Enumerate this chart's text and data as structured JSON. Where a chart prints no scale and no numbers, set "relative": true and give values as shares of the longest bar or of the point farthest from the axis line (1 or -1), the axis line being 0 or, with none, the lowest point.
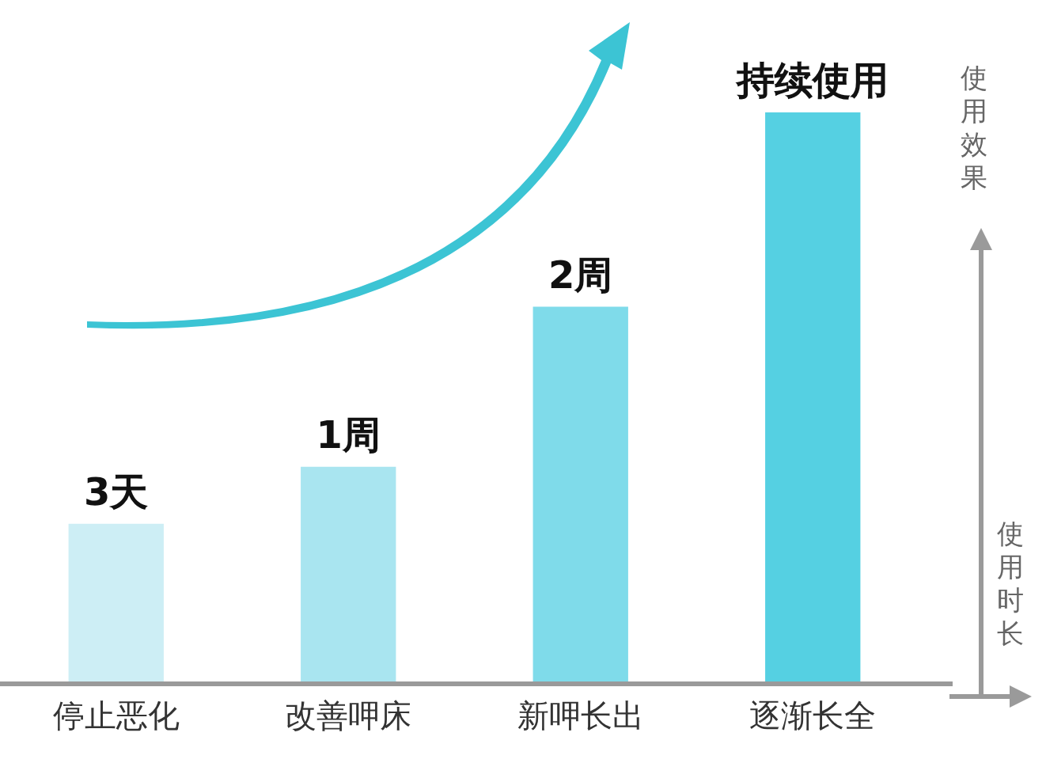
{
  "chart_data": {
    "type": "bar",
    "relative": true,
    "xlabel": "使用时长",
    "ylabel": "使用效果",
    "categories": [
      "停止恶化",
      "改善呷床",
      "新呷长出",
      "逐渐长全"
    ],
    "values": [
      0.28,
      0.38,
      0.66,
      1
    ],
    "colors": [
      "#cdeef5",
      "#a9e5f0",
      "#7fdbea",
      "#55d0e2"
    ],
    "annotations": [
      {
        "text": "3天",
        "x": "停止恶化",
        "y": 0.28
      },
      {
        "text": "1周",
        "x": "改善呷床",
        "y": 0.38
      },
      {
        "text": "2周",
        "x": "新呷长出",
        "y": 0.66
      },
      {
        "text": "持续使用",
        "x": "逐渐长全",
        "y": 1
      }
    ]
  }
}
